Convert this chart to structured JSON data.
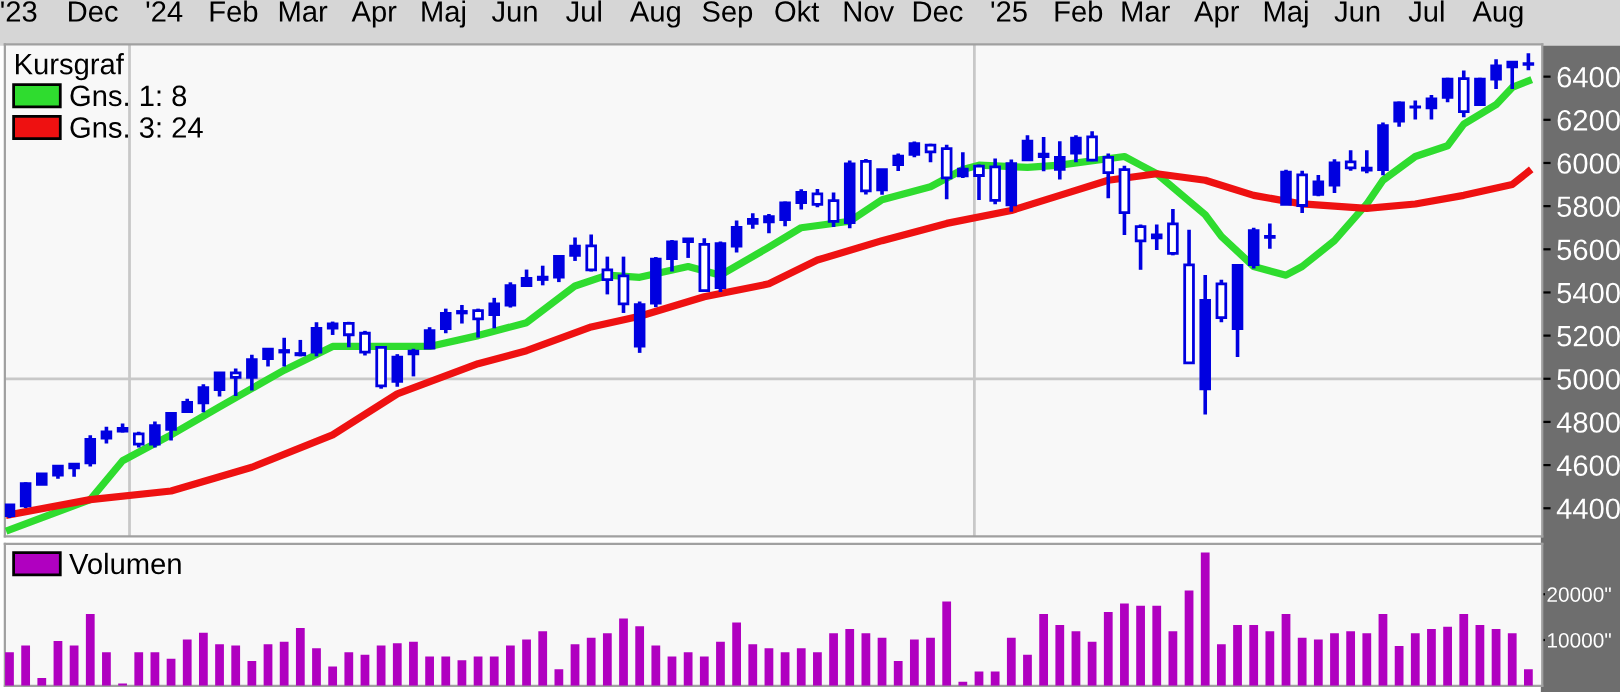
{
  "chart_data": [
    {
      "type": "candlestick",
      "color": "#0000e0",
      "legend": "top left",
      "legend_title": "Kursgraf",
      "grid": false,
      "x": [
        "2023-11-10",
        "2023-11-17",
        "2023-11-24",
        "2023-12-01",
        "2023-12-08",
        "2023-12-15",
        "2023-12-22",
        "2023-12-29",
        "2024-01-05",
        "2024-01-12",
        "2024-01-19",
        "2024-01-26",
        "2024-02-02",
        "2024-02-09",
        "2024-02-16",
        "2024-02-23",
        "2024-03-01",
        "2024-03-08",
        "2024-03-15",
        "2024-03-22",
        "2024-03-29",
        "2024-04-05",
        "2024-04-12",
        "2024-04-19",
        "2024-04-26",
        "2024-05-03",
        "2024-05-10",
        "2024-05-17",
        "2024-05-24",
        "2024-05-31",
        "2024-06-07",
        "2024-06-14",
        "2024-06-21",
        "2024-06-28",
        "2024-07-05",
        "2024-07-12",
        "2024-07-19",
        "2024-07-26",
        "2024-08-02",
        "2024-08-09",
        "2024-08-16",
        "2024-08-23",
        "2024-08-30",
        "2024-09-06",
        "2024-09-13",
        "2024-09-20",
        "2024-09-27",
        "2024-10-04",
        "2024-10-11",
        "2024-10-18",
        "2024-10-25",
        "2024-11-01",
        "2024-11-08",
        "2024-11-15",
        "2024-11-22",
        "2024-11-29",
        "2024-12-06",
        "2024-12-13",
        "2024-12-20",
        "2024-12-27",
        "2025-01-03",
        "2025-01-10",
        "2025-01-17",
        "2025-01-24",
        "2025-01-31",
        "2025-02-07",
        "2025-02-14",
        "2025-02-21",
        "2025-02-28",
        "2025-03-07",
        "2025-03-14",
        "2025-03-21",
        "2025-03-28",
        "2025-04-04",
        "2025-04-11",
        "2025-04-18",
        "2025-04-25",
        "2025-05-02",
        "2025-05-09",
        "2025-05-16",
        "2025-05-23",
        "2025-05-30",
        "2025-06-06",
        "2025-06-13",
        "2025-06-20",
        "2025-06-27",
        "2025-07-04",
        "2025-07-11",
        "2025-07-18",
        "2025-07-25",
        "2025-08-01",
        "2025-08-08",
        "2025-08-15",
        "2025-08-22",
        "2025-08-29"
      ],
      "ohlc": [
        [
          4366,
          4418,
          4355,
          4415
        ],
        [
          4411,
          4521,
          4401,
          4514
        ],
        [
          4511,
          4560,
          4511,
          4559
        ],
        [
          4554,
          4599,
          4537,
          4595
        ],
        [
          4587,
          4609,
          4546,
          4604
        ],
        [
          4610,
          4738,
          4593,
          4719
        ],
        [
          4725,
          4778,
          4700,
          4754
        ],
        [
          4758,
          4793,
          4751,
          4770
        ],
        [
          4745,
          4755,
          4682,
          4697
        ],
        [
          4697,
          4802,
          4682,
          4783
        ],
        [
          4765,
          4842,
          4714,
          4840
        ],
        [
          4848,
          4907,
          4842,
          4891
        ],
        [
          4888,
          4975,
          4845,
          4959
        ],
        [
          4950,
          5030,
          4918,
          5027
        ],
        [
          5027,
          5048,
          4920,
          5006
        ],
        [
          5006,
          5111,
          4946,
          5089
        ],
        [
          5093,
          5140,
          5057,
          5137
        ],
        [
          5131,
          5190,
          5057,
          5124
        ],
        [
          5111,
          5180,
          5104,
          5117
        ],
        [
          5123,
          5262,
          5104,
          5234
        ],
        [
          5235,
          5265,
          5203,
          5254
        ],
        [
          5257,
          5264,
          5146,
          5204
        ],
        [
          5211,
          5222,
          5108,
          5123
        ],
        [
          5145,
          5147,
          4954,
          4967
        ],
        [
          4988,
          5114,
          4963,
          5100
        ],
        [
          5115,
          5139,
          5011,
          5128
        ],
        [
          5142,
          5239,
          5142,
          5223
        ],
        [
          5233,
          5325,
          5211,
          5303
        ],
        [
          5312,
          5342,
          5256,
          5305
        ],
        [
          5316,
          5325,
          5191,
          5278
        ],
        [
          5297,
          5375,
          5234,
          5347
        ],
        [
          5341,
          5447,
          5330,
          5432
        ],
        [
          5432,
          5506,
          5428,
          5465
        ],
        [
          5471,
          5524,
          5433,
          5460
        ],
        [
          5471,
          5570,
          5448,
          5567
        ],
        [
          5572,
          5655,
          5546,
          5615
        ],
        [
          5616,
          5669,
          5497,
          5505
        ],
        [
          5505,
          5566,
          5391,
          5459
        ],
        [
          5477,
          5566,
          5305,
          5347
        ],
        [
          5151,
          5358,
          5120,
          5344
        ],
        [
          5351,
          5564,
          5332,
          5554
        ],
        [
          5557,
          5643,
          5497,
          5634
        ],
        [
          5636,
          5652,
          5560,
          5648
        ],
        [
          5623,
          5651,
          5403,
          5408
        ],
        [
          5422,
          5636,
          5402,
          5626
        ],
        [
          5615,
          5733,
          5585,
          5702
        ],
        [
          5720,
          5767,
          5695,
          5738
        ],
        [
          5727,
          5763,
          5674,
          5751
        ],
        [
          5737,
          5822,
          5707,
          5815
        ],
        [
          5816,
          5878,
          5784,
          5864
        ],
        [
          5857,
          5879,
          5795,
          5808
        ],
        [
          5826,
          5863,
          5703,
          5729
        ],
        [
          5724,
          6012,
          5697,
          5996
        ],
        [
          6007,
          6018,
          5854,
          5871
        ],
        [
          5875,
          5972,
          5853,
          5969
        ],
        [
          5992,
          6044,
          5963,
          6032
        ],
        [
          6040,
          6099,
          6026,
          6090
        ],
        [
          6083,
          6089,
          6003,
          6051
        ],
        [
          6067,
          6085,
          5832,
          5931
        ],
        [
          5940,
          6050,
          5930,
          5971
        ],
        [
          5985,
          5993,
          5829,
          5942
        ],
        [
          5982,
          6021,
          5809,
          5827
        ],
        [
          5806,
          6016,
          5774,
          5997
        ],
        [
          6014,
          6128,
          6012,
          6101
        ],
        [
          6029,
          6120,
          5962,
          6041
        ],
        [
          5970,
          6101,
          5923,
          6026
        ],
        [
          6046,
          6128,
          6003,
          6115
        ],
        [
          6121,
          6147,
          6008,
          6013
        ],
        [
          6026,
          6044,
          5837,
          5955
        ],
        [
          5969,
          5987,
          5666,
          5770
        ],
        [
          5705,
          5715,
          5505,
          5639
        ],
        [
          5653,
          5715,
          5597,
          5667
        ],
        [
          5718,
          5787,
          5572,
          5581
        ],
        [
          5528,
          5691,
          5069,
          5074
        ],
        [
          4953,
          5481,
          4835,
          5363
        ],
        [
          5440,
          5459,
          5262,
          5283
        ],
        [
          5232,
          5528,
          5101,
          5525
        ],
        [
          5529,
          5700,
          5511,
          5687
        ],
        [
          5655,
          5720,
          5603,
          5660
        ],
        [
          5808,
          5969,
          5808,
          5958
        ],
        [
          5945,
          5964,
          5768,
          5803
        ],
        [
          5855,
          5944,
          5846,
          5912
        ],
        [
          5897,
          6017,
          5861,
          6000
        ],
        [
          6005,
          6059,
          5964,
          5977
        ],
        [
          5976,
          6059,
          5952,
          5967
        ],
        [
          5969,
          6188,
          5943,
          6173
        ],
        [
          6194,
          6285,
          6168,
          6279
        ],
        [
          6259,
          6290,
          6201,
          6260
        ],
        [
          6255,
          6315,
          6202,
          6297
        ],
        [
          6304,
          6395,
          6281,
          6389
        ],
        [
          6391,
          6428,
          6212,
          6238
        ],
        [
          6271,
          6395,
          6271,
          6389
        ],
        [
          6389,
          6481,
          6343,
          6450
        ],
        [
          6445,
          6467,
          6343,
          6467
        ],
        [
          6457,
          6509,
          6430,
          6460
        ]
      ],
      "series": [
        {
          "name": "Gns. 1: 8",
          "type": "line",
          "color": "#2fdc2f",
          "x": [
            "2023-11-10",
            "2023-12-15",
            "2023-12-29",
            "2024-01-19",
            "2024-02-09",
            "2024-03-08",
            "2024-03-29",
            "2024-04-19",
            "2024-05-10",
            "2024-05-31",
            "2024-06-21",
            "2024-07-12",
            "2024-07-26",
            "2024-08-09",
            "2024-08-30",
            "2024-09-13",
            "2024-10-04",
            "2024-10-18",
            "2024-11-08",
            "2024-11-22",
            "2024-12-13",
            "2024-12-27",
            "2025-01-03",
            "2025-01-24",
            "2025-02-07",
            "2025-03-07",
            "2025-03-14",
            "2025-03-21",
            "2025-04-11",
            "2025-04-18",
            "2025-05-02",
            "2025-05-16",
            "2025-05-23",
            "2025-06-06",
            "2025-06-20",
            "2025-06-27",
            "2025-07-11",
            "2025-07-25",
            "2025-08-01",
            "2025-08-15",
            "2025-08-22",
            "2025-08-29"
          ],
          "values": [
            4300,
            4440,
            4620,
            4740,
            4870,
            5040,
            5150,
            5150,
            5150,
            5200,
            5260,
            5430,
            5480,
            5470,
            5520,
            5480,
            5610,
            5700,
            5730,
            5830,
            5890,
            5970,
            5990,
            5980,
            5990,
            6030,
            5990,
            5950,
            5760,
            5660,
            5520,
            5480,
            5520,
            5640,
            5810,
            5920,
            6030,
            6080,
            6180,
            6270,
            6350,
            6380
          ]
        },
        {
          "name": "Gns. 3: 24",
          "type": "line",
          "color": "#ee1111",
          "x": [
            "2023-11-10",
            "2023-12-15",
            "2024-01-19",
            "2024-02-23",
            "2024-03-29",
            "2024-04-26",
            "2024-05-31",
            "2024-06-21",
            "2024-07-19",
            "2024-08-09",
            "2024-09-06",
            "2024-10-04",
            "2024-10-25",
            "2024-11-22",
            "2024-12-20",
            "2025-01-17",
            "2025-02-07",
            "2025-02-28",
            "2025-03-21",
            "2025-04-11",
            "2025-05-02",
            "2025-05-23",
            "2025-06-20",
            "2025-07-11",
            "2025-08-01",
            "2025-08-22",
            "2025-08-29"
          ],
          "values": [
            4370,
            4440,
            4480,
            4590,
            4740,
            4930,
            5070,
            5130,
            5240,
            5290,
            5380,
            5440,
            5550,
            5640,
            5720,
            5780,
            5850,
            5920,
            5950,
            5920,
            5850,
            5810,
            5790,
            5810,
            5850,
            5900,
            5960
          ]
        }
      ],
      "xlim": [
        "2023-11-08",
        "2025-09-04"
      ],
      "xticks": [
        {
          "value": "2023-11-14",
          "label": "'23"
        },
        {
          "value": "2023-12-16",
          "label": "Dec"
        },
        {
          "value": "2024-01-16",
          "label": "'24"
        },
        {
          "value": "2024-02-15",
          "label": "Feb"
        },
        {
          "value": "2024-03-16",
          "label": "Mar"
        },
        {
          "value": "2024-04-16",
          "label": "Apr"
        },
        {
          "value": "2024-05-16",
          "label": "Maj"
        },
        {
          "value": "2024-06-16",
          "label": "Jun"
        },
        {
          "value": "2024-07-16",
          "label": "Jul"
        },
        {
          "value": "2024-08-16",
          "label": "Aug"
        },
        {
          "value": "2024-09-16",
          "label": "Sep"
        },
        {
          "value": "2024-10-16",
          "label": "Okt"
        },
        {
          "value": "2024-11-16",
          "label": "Nov"
        },
        {
          "value": "2024-12-16",
          "label": "Dec"
        },
        {
          "value": "2025-01-16",
          "label": "'25"
        },
        {
          "value": "2025-02-15",
          "label": "Feb"
        },
        {
          "value": "2025-03-16",
          "label": "Mar"
        },
        {
          "value": "2025-04-16",
          "label": "Apr"
        },
        {
          "value": "2025-05-16",
          "label": "Maj"
        },
        {
          "value": "2025-06-16",
          "label": "Jun"
        },
        {
          "value": "2025-07-16",
          "label": "Jul"
        },
        {
          "value": "2025-08-16",
          "label": "Aug"
        }
      ],
      "ylim": [
        4270,
        6550
      ],
      "yticks": [
        4400,
        4600,
        4800,
        5000,
        5200,
        5400,
        5600,
        5800,
        6000,
        6200,
        6400
      ],
      "ref_lines": [
        {
          "axis": "x",
          "value": "2024-01-01",
          "color": "#c8c8c8"
        },
        {
          "axis": "x",
          "value": "2025-01-01",
          "color": "#c8c8c8"
        },
        {
          "axis": "y",
          "value": 5000,
          "color": "#c8c8c8"
        }
      ]
    },
    {
      "type": "bar",
      "legend": "top left",
      "series": [
        {
          "name": "Volumen",
          "color": "#b000c0",
          "values": [
            7300,
            8800,
            1700,
            9800,
            8800,
            15700,
            7300,
            500,
            7300,
            7300,
            5900,
            10100,
            11600,
            9100,
            8800,
            5400,
            9100,
            9600,
            12600,
            8200,
            4200,
            7300,
            6800,
            8800,
            9300,
            9600,
            6400,
            6400,
            5600,
            6400,
            6400,
            8800,
            10100,
            11900,
            3600,
            9100,
            10500,
            11500,
            14700,
            13000,
            8800,
            6400,
            7300,
            6400,
            9600,
            13800,
            9100,
            8200,
            7300,
            8200,
            7300,
            11500,
            12400,
            11500,
            10500,
            5400,
            10100,
            10500,
            18400,
            900,
            3100,
            3100,
            10500,
            6800,
            15700,
            13300,
            11900,
            9600,
            16100,
            18000,
            17500,
            17500,
            11900,
            20800,
            29100,
            9100,
            13300,
            13300,
            11900,
            15700,
            10500,
            10100,
            11500,
            11900,
            11500,
            15700,
            8700,
            11500,
            12400,
            12900,
            15700,
            13300,
            12400,
            11500,
            3600
          ]
        }
      ],
      "x": [
        "2023-11-10",
        "2023-11-17",
        "2023-11-24",
        "2023-12-01",
        "2023-12-08",
        "2023-12-15",
        "2023-12-22",
        "2023-12-29",
        "2024-01-05",
        "2024-01-12",
        "2024-01-19",
        "2024-01-26",
        "2024-02-02",
        "2024-02-09",
        "2024-02-16",
        "2024-02-23",
        "2024-03-01",
        "2024-03-08",
        "2024-03-15",
        "2024-03-22",
        "2024-03-29",
        "2024-04-05",
        "2024-04-12",
        "2024-04-19",
        "2024-04-26",
        "2024-05-03",
        "2024-05-10",
        "2024-05-17",
        "2024-05-24",
        "2024-05-31",
        "2024-06-07",
        "2024-06-14",
        "2024-06-21",
        "2024-06-28",
        "2024-07-05",
        "2024-07-12",
        "2024-07-19",
        "2024-07-26",
        "2024-08-02",
        "2024-08-09",
        "2024-08-16",
        "2024-08-23",
        "2024-08-30",
        "2024-09-06",
        "2024-09-13",
        "2024-09-20",
        "2024-09-27",
        "2024-10-04",
        "2024-10-11",
        "2024-10-18",
        "2024-10-25",
        "2024-11-01",
        "2024-11-08",
        "2024-11-15",
        "2024-11-22",
        "2024-11-29",
        "2024-12-06",
        "2024-12-13",
        "2024-12-20",
        "2024-12-27",
        "2025-01-03",
        "2025-01-10",
        "2025-01-17",
        "2025-01-24",
        "2025-01-31",
        "2025-02-07",
        "2025-02-14",
        "2025-02-21",
        "2025-02-28",
        "2025-03-07",
        "2025-03-14",
        "2025-03-21",
        "2025-03-28",
        "2025-04-04",
        "2025-04-11",
        "2025-04-18",
        "2025-04-25",
        "2025-05-02",
        "2025-05-09",
        "2025-05-16",
        "2025-05-23",
        "2025-05-30",
        "2025-06-06",
        "2025-06-13",
        "2025-06-20",
        "2025-06-27",
        "2025-07-04",
        "2025-07-11",
        "2025-07-18",
        "2025-07-25",
        "2025-08-01",
        "2025-08-08",
        "2025-08-15",
        "2025-08-22",
        "2025-08-29"
      ],
      "xlim": [
        "2023-11-08",
        "2025-09-04"
      ],
      "ylim": [
        0,
        31000
      ],
      "yticks": [
        {
          "value": 10000,
          "label": "10000\""
        },
        {
          "value": 20000,
          "label": "20000\""
        }
      ]
    }
  ]
}
